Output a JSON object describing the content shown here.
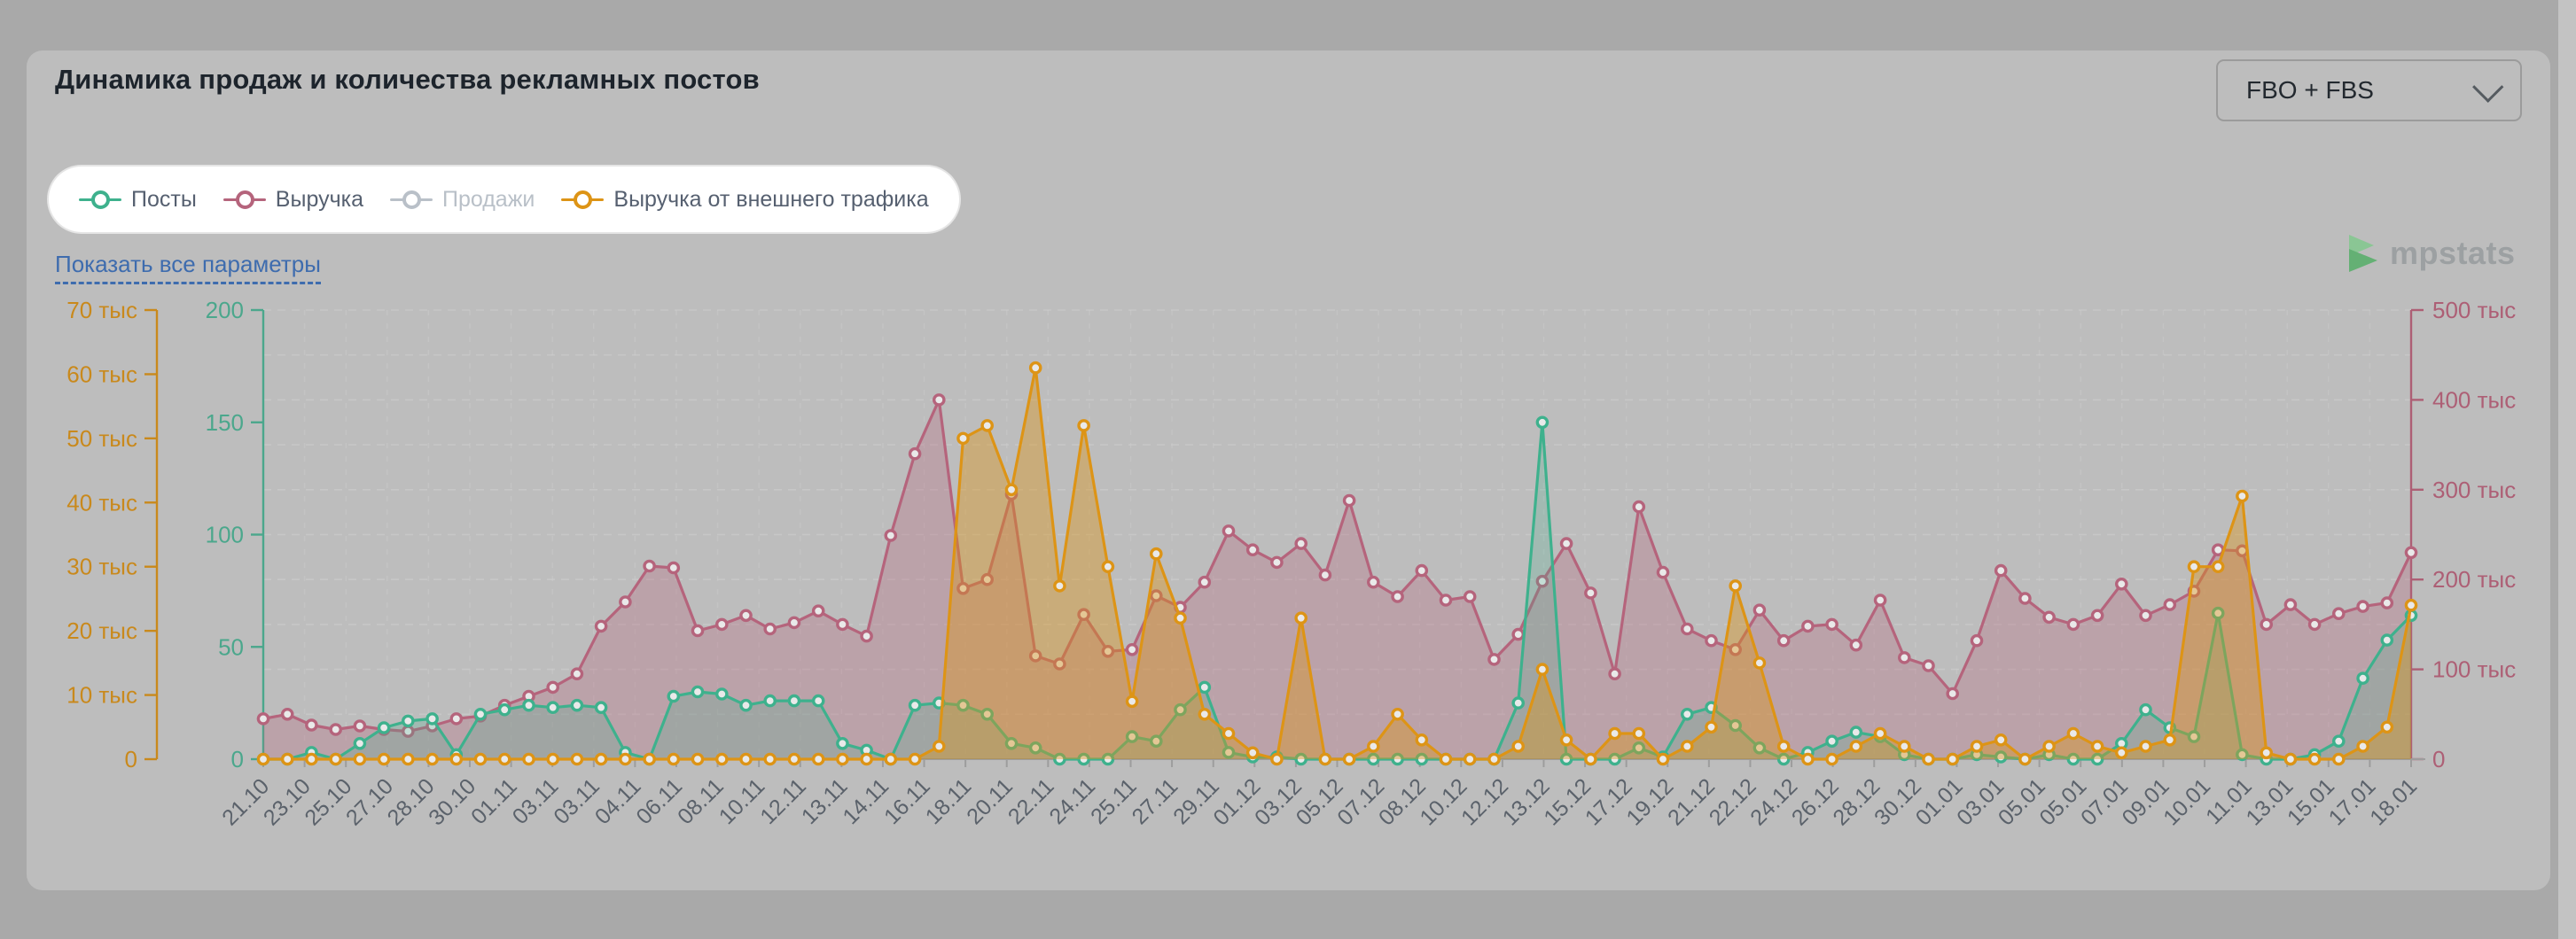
{
  "card": {
    "title": "Динамика продаж и количества рекламных постов"
  },
  "dropdown": {
    "value": "FBO + FBS"
  },
  "legend": {
    "items": [
      {
        "label": "Посты",
        "color": "#3eb18d",
        "text_color": "#566070",
        "enabled": true
      },
      {
        "label": "Выручка",
        "color": "#b5647c",
        "text_color": "#566070",
        "enabled": true
      },
      {
        "label": "Продажи",
        "color": "#b9c0c8",
        "text_color": "#b9c0c8",
        "enabled": false
      },
      {
        "label": "Выручка от внешнего трафика",
        "color": "#dd9416",
        "text_color": "#566070",
        "enabled": true
      }
    ]
  },
  "params_link": {
    "label": "Показать все параметры"
  },
  "watermark": {
    "label": "mpstats",
    "icon_color_light": "#7ec98a",
    "icon_color_dark": "#4fae63"
  },
  "chart_data": {
    "type": "line",
    "title": "Динамика продаж и количества рекламных постов",
    "grid": true,
    "legend_position": "top",
    "axes": {
      "left_outer": {
        "color": "#c9891c",
        "ylim_k": [
          0,
          70
        ],
        "ticks": [
          "70 тыс",
          "60 тыс",
          "50 тыс",
          "40 тыс",
          "30 тыс",
          "20 тыс",
          "10 тыс",
          "0"
        ]
      },
      "left_inner": {
        "color": "#4ba78c",
        "ylim": [
          0,
          200
        ],
        "ticks": [
          "200",
          "150",
          "100",
          "50",
          "0"
        ]
      },
      "right": {
        "color": "#ad5f75",
        "ylim_k": [
          0,
          500
        ],
        "ticks": [
          "500 тыс",
          "400 тыс",
          "300 тыс",
          "200 тыс",
          "100 тыс",
          "0"
        ]
      }
    },
    "x_labels_visible": [
      "21.10",
      "23.10",
      "25.10",
      "27.10",
      "28.10",
      "30.10",
      "01.11",
      "03.11",
      "03.11",
      "04.11",
      "06.11",
      "08.11",
      "10.11",
      "12.11",
      "13.11",
      "14.11",
      "16.11",
      "18.11",
      "20.11",
      "22.11",
      "24.11",
      "25.11",
      "27.11",
      "29.11",
      "01.12",
      "03.12",
      "05.12",
      "07.12",
      "08.12",
      "10.12",
      "12.12",
      "13.12",
      "15.12",
      "17.12",
      "19.12",
      "21.12",
      "22.12",
      "24.12",
      "26.12",
      "28.12",
      "30.12",
      "01.01",
      "03.01",
      "05.01",
      "05.01",
      "07.01",
      "09.01",
      "10.01",
      "11.01",
      "13.01",
      "15.01",
      "17.01",
      "18.01"
    ],
    "dates": [
      "21.10",
      "22.10",
      "23.10",
      "24.10",
      "25.10",
      "26.10",
      "27.10",
      "28.10",
      "29.10",
      "30.10",
      "31.10",
      "01.11",
      "02.11",
      "03.11",
      "04.11",
      "05.11",
      "06.11",
      "07.11",
      "08.11",
      "09.11",
      "10.11",
      "11.11",
      "12.11",
      "13.11",
      "14.11",
      "15.11",
      "16.11",
      "17.11",
      "18.11",
      "19.11",
      "20.11",
      "21.11",
      "22.11",
      "23.11",
      "24.11",
      "25.11",
      "26.11",
      "27.11",
      "28.11",
      "29.11",
      "30.11",
      "01.12",
      "02.12",
      "03.12",
      "04.12",
      "05.12",
      "06.12",
      "07.12",
      "08.12",
      "09.12",
      "10.12",
      "11.12",
      "12.12",
      "13.12",
      "14.12",
      "15.12",
      "16.12",
      "17.12",
      "18.12",
      "19.12",
      "20.12",
      "21.12",
      "22.12",
      "23.12",
      "24.12",
      "25.12",
      "26.12",
      "27.12",
      "28.12",
      "29.12",
      "30.12",
      "31.12",
      "01.01",
      "02.01",
      "03.01",
      "04.01",
      "05.01",
      "06.01",
      "07.01",
      "08.01",
      "09.01",
      "10.01",
      "11.01",
      "12.01",
      "13.01",
      "14.01",
      "15.01",
      "16.01",
      "17.01",
      "18.01"
    ],
    "series": [
      {
        "name": "Выручка",
        "axis": "right",
        "unit": "тыс",
        "color": "#b5647c",
        "fill": "rgba(181,100,124,0.30)",
        "axis_max": 500,
        "values": [
          45,
          50,
          38,
          33,
          37,
          33,
          31,
          37,
          45,
          48,
          60,
          70,
          80,
          95,
          148,
          175,
          215,
          213,
          143,
          150,
          160,
          145,
          152,
          165,
          150,
          137,
          249,
          340,
          400,
          190,
          200,
          295,
          115,
          106,
          161,
          120,
          122,
          182,
          169,
          197,
          254,
          233,
          219,
          240,
          205,
          288,
          197,
          181,
          210,
          177,
          181,
          111,
          139,
          198,
          240,
          185,
          95,
          281,
          208,
          145,
          132,
          122,
          166,
          132,
          148,
          150,
          127,
          177,
          113,
          104,
          73,
          132,
          210,
          179,
          158,
          150,
          160,
          195,
          160,
          172,
          187,
          233,
          232,
          150,
          172,
          150,
          162,
          170,
          174,
          230
        ]
      },
      {
        "name": "Посты",
        "axis": "left_inner",
        "unit": "шт",
        "color": "#3eb18d",
        "fill": "rgba(62,177,141,0.22)",
        "axis_max": 200,
        "values": [
          0,
          0,
          3,
          0,
          7,
          14,
          17,
          18,
          2,
          20,
          22,
          24,
          23,
          24,
          23,
          3,
          0,
          28,
          30,
          29,
          24,
          26,
          26,
          26,
          7,
          4,
          0,
          24,
          25,
          24,
          20,
          7,
          5,
          0,
          0,
          0,
          10,
          8,
          22,
          32,
          3,
          1,
          1,
          0,
          0,
          0,
          0,
          0,
          0,
          0,
          0,
          0,
          25,
          150,
          0,
          0,
          0,
          5,
          1,
          20,
          23,
          15,
          5,
          0,
          3,
          8,
          12,
          10,
          2,
          0,
          0,
          2,
          1,
          0,
          2,
          0,
          0,
          7,
          22,
          14,
          10,
          65,
          2,
          0,
          0,
          2,
          8,
          36,
          53,
          64
        ]
      },
      {
        "name": "Выручка от внешнего трафика",
        "axis": "left_outer",
        "unit": "тыс",
        "color": "#dd9416",
        "fill": "rgba(221,148,22,0.40)",
        "axis_max": 70,
        "values": [
          0,
          0,
          0,
          0,
          0,
          0,
          0,
          0,
          0,
          0,
          0,
          0,
          0,
          0,
          0,
          0,
          0,
          0,
          0,
          0,
          0,
          0,
          0,
          0,
          0,
          0,
          0,
          0,
          2,
          50,
          52,
          42,
          61,
          27,
          52,
          30,
          9,
          32,
          22,
          7,
          4,
          1,
          0,
          22,
          0,
          0,
          2,
          7,
          3,
          0,
          0,
          0,
          2,
          14,
          3,
          0,
          4,
          4,
          0,
          2,
          5,
          27,
          15,
          2,
          0,
          0,
          2,
          4,
          2,
          0,
          0,
          2,
          3,
          0,
          2,
          4,
          2,
          1,
          2,
          3,
          30,
          30,
          41,
          1,
          0,
          0,
          0,
          2,
          5,
          24
        ]
      }
    ],
    "hidden_series": [
      "Продажи"
    ]
  }
}
